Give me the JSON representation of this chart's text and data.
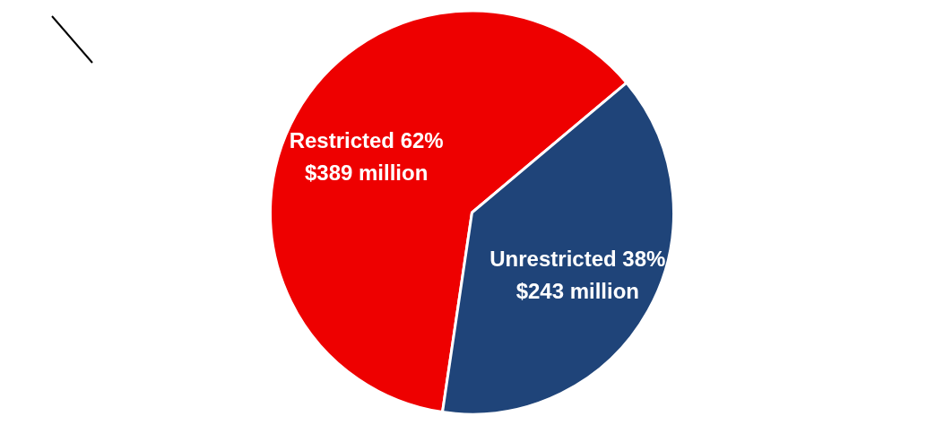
{
  "chart_data": {
    "type": "pie",
    "categories": [
      "Restricted 62%",
      "Unrestricted 38%"
    ],
    "values": [
      389,
      243
    ],
    "value_labels": [
      "$389 million",
      "$243 million"
    ],
    "colors": [
      "#ee0000",
      "#1f4479"
    ]
  }
}
